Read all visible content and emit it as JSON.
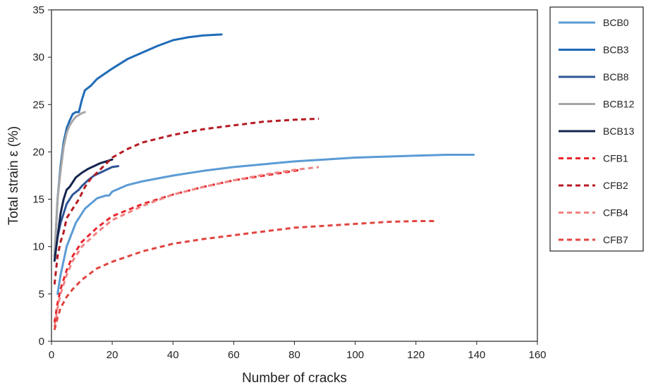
{
  "chart_data": {
    "type": "line",
    "xlabel": "Number of cracks",
    "ylabel": "Total strain ε (%)",
    "xlim": [
      0,
      160
    ],
    "ylim": [
      0,
      35
    ],
    "xticks": [
      0,
      20,
      40,
      60,
      80,
      100,
      120,
      140,
      160
    ],
    "yticks": [
      0,
      5,
      10,
      15,
      20,
      25,
      30,
      35
    ],
    "grid": false,
    "legend_position": "right",
    "series": [
      {
        "name": "BCB0",
        "color": "#5b9bd5",
        "dash": "solid",
        "points": [
          [
            2,
            5
          ],
          [
            3,
            7
          ],
          [
            5,
            10
          ],
          [
            8,
            12.5
          ],
          [
            11,
            14
          ],
          [
            15,
            15.1
          ],
          [
            18,
            15.4
          ],
          [
            19,
            15.4
          ],
          [
            20,
            15.8
          ],
          [
            25,
            16.5
          ],
          [
            30,
            16.9
          ],
          [
            40,
            17.5
          ],
          [
            50,
            18
          ],
          [
            60,
            18.4
          ],
          [
            70,
            18.7
          ],
          [
            80,
            19
          ],
          [
            90,
            19.2
          ],
          [
            100,
            19.4
          ],
          [
            110,
            19.5
          ],
          [
            120,
            19.6
          ],
          [
            130,
            19.7
          ],
          [
            139,
            19.7
          ]
        ]
      },
      {
        "name": "BCB3",
        "color": "#1f6bb8",
        "dash": "solid",
        "points": [
          [
            1,
            9
          ],
          [
            1.5,
            12
          ],
          [
            2,
            15
          ],
          [
            3,
            18.5
          ],
          [
            4,
            21
          ],
          [
            5,
            22.5
          ],
          [
            6,
            23.3
          ],
          [
            7,
            24
          ],
          [
            8,
            24.2
          ],
          [
            9,
            24.2
          ],
          [
            10,
            25.5
          ],
          [
            11,
            26.5
          ],
          [
            13,
            27
          ],
          [
            15,
            27.7
          ],
          [
            20,
            28.8
          ],
          [
            25,
            29.8
          ],
          [
            30,
            30.5
          ],
          [
            35,
            31.2
          ],
          [
            40,
            31.8
          ],
          [
            45,
            32.1
          ],
          [
            50,
            32.3
          ],
          [
            56,
            32.4
          ]
        ]
      },
      {
        "name": "BCB8",
        "color": "#2e5597",
        "dash": "solid",
        "points": [
          [
            1,
            9
          ],
          [
            2,
            11
          ],
          [
            3,
            12.5
          ],
          [
            5,
            14.5
          ],
          [
            7,
            15.5
          ],
          [
            9,
            16
          ],
          [
            10,
            16.4
          ],
          [
            12,
            17
          ],
          [
            14,
            17.5
          ],
          [
            16,
            17.8
          ],
          [
            18,
            18.1
          ],
          [
            20,
            18.4
          ],
          [
            22,
            18.5
          ]
        ]
      },
      {
        "name": "BCB12",
        "color": "#a6a6a6",
        "dash": "solid",
        "points": [
          [
            1,
            9
          ],
          [
            1.5,
            12
          ],
          [
            2,
            15
          ],
          [
            3,
            18
          ],
          [
            4,
            20.5
          ],
          [
            5,
            22
          ],
          [
            6,
            22.8
          ],
          [
            7,
            23.3
          ],
          [
            8,
            23.7
          ],
          [
            9,
            23.9
          ],
          [
            10,
            24.1
          ],
          [
            11,
            24.2
          ]
        ]
      },
      {
        "name": "BCB13",
        "color": "#14244d",
        "dash": "solid",
        "points": [
          [
            1,
            8.5
          ],
          [
            2,
            11
          ],
          [
            3,
            13.5
          ],
          [
            4,
            15
          ],
          [
            5,
            16
          ],
          [
            6,
            16.3
          ],
          [
            7,
            16.8
          ],
          [
            8,
            17.3
          ],
          [
            10,
            17.8
          ],
          [
            12,
            18.2
          ],
          [
            14,
            18.5
          ],
          [
            16,
            18.8
          ],
          [
            18,
            19
          ],
          [
            20,
            19.2
          ]
        ]
      },
      {
        "name": "CFB1",
        "color": "#e8262b",
        "dash": "dashed",
        "points": [
          [
            1,
            2
          ],
          [
            2,
            4
          ],
          [
            3,
            5.5
          ],
          [
            5,
            7.5
          ],
          [
            7,
            9
          ],
          [
            10,
            10.5
          ],
          [
            15,
            12
          ],
          [
            20,
            13.2
          ],
          [
            30,
            14.5
          ],
          [
            40,
            15.5
          ],
          [
            50,
            16.3
          ],
          [
            60,
            17
          ],
          [
            70,
            17.5
          ],
          [
            80,
            18
          ],
          [
            82,
            18.1
          ]
        ]
      },
      {
        "name": "CFB2",
        "color": "#b61b22",
        "dash": "dashed",
        "points": [
          [
            1,
            6
          ],
          [
            2,
            9
          ],
          [
            3,
            10.5
          ],
          [
            4,
            11.5
          ],
          [
            5,
            13
          ],
          [
            7,
            14
          ],
          [
            9,
            15
          ],
          [
            11,
            16.3
          ],
          [
            13,
            17.2
          ],
          [
            15,
            17.8
          ],
          [
            20,
            19.4
          ],
          [
            25,
            20.3
          ],
          [
            30,
            21
          ],
          [
            40,
            21.8
          ],
          [
            50,
            22.4
          ],
          [
            60,
            22.8
          ],
          [
            70,
            23.2
          ],
          [
            80,
            23.4
          ],
          [
            88,
            23.5
          ]
        ]
      },
      {
        "name": "CFB4",
        "color": "#f08383",
        "dash": "dashed",
        "points": [
          [
            1,
            1.5
          ],
          [
            2,
            3.5
          ],
          [
            3,
            5
          ],
          [
            5,
            7
          ],
          [
            7,
            8.5
          ],
          [
            10,
            10
          ],
          [
            15,
            11.5
          ],
          [
            20,
            12.8
          ],
          [
            30,
            14.3
          ],
          [
            40,
            15.5
          ],
          [
            50,
            16.3
          ],
          [
            60,
            17
          ],
          [
            70,
            17.6
          ],
          [
            80,
            18.1
          ],
          [
            88,
            18.4
          ]
        ]
      },
      {
        "name": "CFB7",
        "color": "#e0453f",
        "dash": "dashed",
        "points": [
          [
            1,
            1.2
          ],
          [
            2,
            2.5
          ],
          [
            3,
            3.5
          ],
          [
            5,
            4.7
          ],
          [
            7,
            5.5
          ],
          [
            10,
            6.5
          ],
          [
            15,
            7.7
          ],
          [
            20,
            8.4
          ],
          [
            30,
            9.5
          ],
          [
            40,
            10.3
          ],
          [
            50,
            10.8
          ],
          [
            60,
            11.2
          ],
          [
            70,
            11.6
          ],
          [
            80,
            12
          ],
          [
            90,
            12.2
          ],
          [
            100,
            12.4
          ],
          [
            110,
            12.6
          ],
          [
            120,
            12.7
          ],
          [
            126,
            12.7
          ]
        ]
      }
    ]
  }
}
